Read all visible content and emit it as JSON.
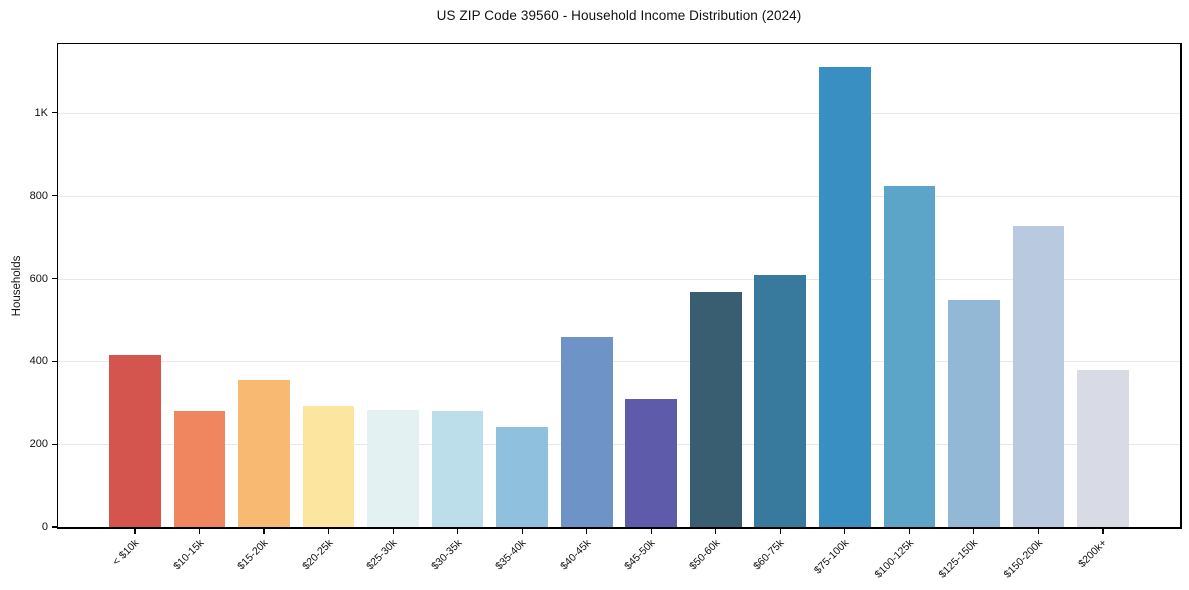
{
  "chart_data": {
    "type": "bar",
    "title": "US ZIP Code 39560 - Household Income Distribution (2024)",
    "xlabel": "",
    "ylabel": "Households",
    "categories": [
      "< $10k",
      "$10-15k",
      "$15-20k",
      "$20-25k",
      "$25-30k",
      "$30-35k",
      "$35-40k",
      "$40-45k",
      "$45-50k",
      "$50-60k",
      "$60-75k",
      "$75-100k",
      "$100-125k",
      "$125-150k",
      "$150-200k",
      "$200k+"
    ],
    "values": [
      415,
      280,
      354,
      292,
      283,
      281,
      241,
      458,
      309,
      568,
      608,
      1110,
      823,
      548,
      727,
      379
    ],
    "bar_colors": [
      "#d4544e",
      "#f0865f",
      "#f8ba72",
      "#fce59e",
      "#e3f1f3",
      "#bcdeea",
      "#8fc0dd",
      "#6e93c6",
      "#5e5baa",
      "#395e72",
      "#387a9e",
      "#398fc2",
      "#5da5c8",
      "#92b8d6",
      "#b9c9e0",
      "#d8dae6"
    ],
    "ylim": [
      0,
      1166
    ],
    "yticks": {
      "values": [
        0,
        200,
        400,
        600,
        800,
        1000
      ],
      "labels": [
        "0",
        "200",
        "400",
        "600",
        "800",
        "1K"
      ]
    },
    "grid": "horizontal",
    "grid_color": "#e8e8e8",
    "spine_color": "#000000",
    "background": "#ffffff",
    "legend": "none"
  }
}
